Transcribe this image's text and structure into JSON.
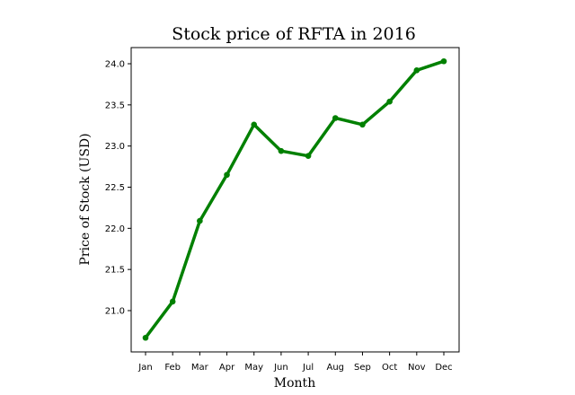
{
  "chart_data": {
    "type": "line",
    "title": "Stock price of RFTA in 2016",
    "xlabel": "Month",
    "ylabel": "Price of Stock (USD)",
    "categories": [
      "Jan",
      "Feb",
      "Mar",
      "Apr",
      "May",
      "Jun",
      "Jul",
      "Aug",
      "Sep",
      "Oct",
      "Nov",
      "Dec"
    ],
    "series": [
      {
        "values": [
          20.67,
          21.11,
          22.09,
          22.65,
          23.26,
          22.94,
          22.88,
          23.34,
          23.26,
          23.54,
          23.92,
          24.03
        ]
      }
    ],
    "yticks": [
      "21.0",
      "21.5",
      "22.0",
      "22.5",
      "23.0",
      "23.5",
      "24.0"
    ],
    "ylim": [
      20.55,
      24.2
    ],
    "grid": false,
    "colors": {
      "line": "#008000",
      "marker": "#008000"
    }
  }
}
